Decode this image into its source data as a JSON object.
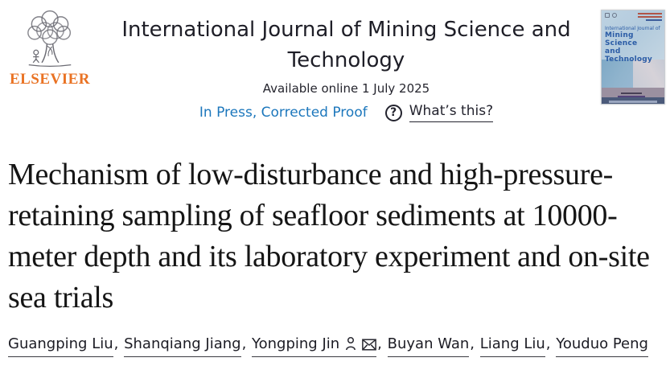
{
  "publisher": {
    "name": "ELSEVIER"
  },
  "journal": {
    "title": "International Journal of Mining Science and Technology",
    "availability": "Available online 1 July 2025",
    "status": "In Press, Corrected Proof",
    "help_glyph": "?",
    "help_label": "What’s this?"
  },
  "cover": {
    "title_lines": [
      "International Journal of",
      "Mining Science",
      "and",
      "Technology"
    ]
  },
  "article": {
    "title": "Mechanism of low-disturbance and high-pressure-retaining sampling of seafloor sediments at 10000-meter depth and its laboratory experiment and on-site sea trials"
  },
  "authors": {
    "separator": ", ",
    "list": [
      {
        "name": "Guangping Liu",
        "corresponding": false
      },
      {
        "name": "Shanqiang Jiang",
        "corresponding": false
      },
      {
        "name": "Yongping Jin",
        "corresponding": true
      },
      {
        "name": "Buyan Wan",
        "corresponding": false
      },
      {
        "name": "Liang Liu",
        "corresponding": false
      },
      {
        "name": "Youduo Peng",
        "corresponding": false
      }
    ]
  },
  "colors": {
    "link_blue": "#1c77bc",
    "elsevier_orange": "#e97223",
    "text_dark": "#23232e",
    "title_black": "#151515",
    "cover_blue": "#2b5ca6"
  }
}
